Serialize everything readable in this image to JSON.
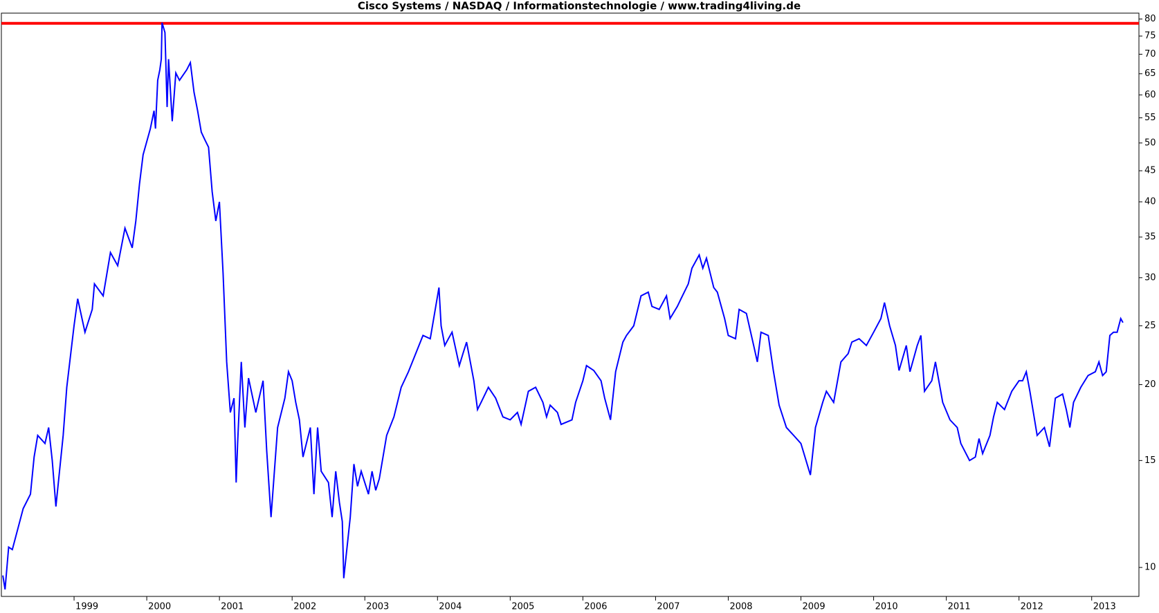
{
  "chart_data": {
    "type": "line",
    "title": "Cisco Systems / NASDAQ / Informationstechnologie / www.trading4living.de",
    "log_scale": true,
    "grid": false,
    "x": [
      1998.02,
      1998.05,
      1998.1,
      1998.15,
      1998.3,
      1998.4,
      1998.45,
      1998.5,
      1998.6,
      1998.65,
      1998.7,
      1998.75,
      1998.85,
      1998.9,
      1999.0,
      1999.05,
      1999.15,
      1999.25,
      1999.28,
      1999.4,
      1999.5,
      1999.6,
      1999.7,
      1999.8,
      1999.85,
      1999.9,
      1999.95,
      2000.05,
      2000.1,
      2000.12,
      2000.15,
      2000.18,
      2000.2,
      2000.21,
      2000.25,
      2000.28,
      2000.3,
      2000.35,
      2000.4,
      2000.45,
      2000.55,
      2000.6,
      2000.65,
      2000.7,
      2000.75,
      2000.8,
      2000.85,
      2000.9,
      2000.95,
      2001.0,
      2001.05,
      2001.1,
      2001.15,
      2001.2,
      2001.23,
      2001.25,
      2001.3,
      2001.35,
      2001.4,
      2001.5,
      2001.6,
      2001.65,
      2001.71,
      2001.8,
      2001.9,
      2001.95,
      2002.0,
      2002.05,
      2002.1,
      2002.15,
      2002.25,
      2002.3,
      2002.35,
      2002.4,
      2002.5,
      2002.55,
      2002.6,
      2002.65,
      2002.69,
      2002.71,
      2002.8,
      2002.85,
      2002.9,
      2002.95,
      2003.05,
      2003.1,
      2003.15,
      2003.2,
      2003.3,
      2003.4,
      2003.5,
      2003.6,
      2003.7,
      2003.8,
      2003.9,
      2004.02,
      2004.05,
      2004.1,
      2004.15,
      2004.2,
      2004.3,
      2004.35,
      2004.4,
      2004.5,
      2004.55,
      2004.6,
      2004.7,
      2004.8,
      2004.9,
      2005.0,
      2005.1,
      2005.15,
      2005.25,
      2005.35,
      2005.45,
      2005.5,
      2005.55,
      2005.65,
      2005.7,
      2005.85,
      2005.9,
      2006.0,
      2006.05,
      2006.15,
      2006.25,
      2006.3,
      2006.38,
      2006.45,
      2006.55,
      2006.6,
      2006.7,
      2006.8,
      2006.9,
      2006.95,
      2007.05,
      2007.15,
      2007.2,
      2007.3,
      2007.35,
      2007.45,
      2007.5,
      2007.6,
      2007.65,
      2007.7,
      2007.8,
      2007.85,
      2007.95,
      2008.0,
      2008.1,
      2008.15,
      2008.25,
      2008.35,
      2008.4,
      2008.45,
      2008.55,
      2008.62,
      2008.7,
      2008.8,
      2008.9,
      2009.0,
      2009.13,
      2009.2,
      2009.3,
      2009.35,
      2009.45,
      2009.55,
      2009.65,
      2009.7,
      2009.8,
      2009.9,
      2010.0,
      2010.1,
      2010.15,
      2010.22,
      2010.3,
      2010.35,
      2010.45,
      2010.5,
      2010.6,
      2010.65,
      2010.7,
      2010.8,
      2010.85,
      2010.95,
      2011.05,
      2011.15,
      2011.2,
      2011.32,
      2011.4,
      2011.45,
      2011.5,
      2011.6,
      2011.65,
      2011.7,
      2011.8,
      2011.9,
      2012.0,
      2012.05,
      2012.1,
      2012.15,
      2012.25,
      2012.35,
      2012.42,
      2012.5,
      2012.6,
      2012.65,
      2012.7,
      2012.75,
      2012.85,
      2012.95,
      2013.05,
      2013.1,
      2013.15,
      2013.2,
      2013.25,
      2013.3,
      2013.35,
      2013.4,
      2013.43
    ],
    "series": [
      {
        "color": "#0000ff",
        "values": [
          9.7,
          9.2,
          10.8,
          10.7,
          12.5,
          13.2,
          15.2,
          16.5,
          16,
          17,
          15,
          12.6,
          16.5,
          19.8,
          25,
          27.7,
          24.4,
          26.6,
          29.3,
          28,
          33,
          31.4,
          36.2,
          33.6,
          37.2,
          42.8,
          47.8,
          52.8,
          56.5,
          52.8,
          63.4,
          66,
          68.7,
          78.9,
          76,
          57.3,
          68.7,
          54.3,
          65.2,
          63.4,
          66,
          67.8,
          60.6,
          56.5,
          52.1,
          50.6,
          49.2,
          41.6,
          37.2,
          40,
          30.5,
          21.8,
          18,
          19,
          13.8,
          16,
          21.8,
          17,
          20.5,
          18,
          20.3,
          15.6,
          12.1,
          17,
          19,
          21,
          20.3,
          18.7,
          17.5,
          15.2,
          17,
          13.2,
          17,
          14.4,
          13.8,
          12.1,
          14.4,
          12.8,
          11.9,
          9.6,
          12.1,
          14.8,
          13.6,
          14.4,
          13.2,
          14.4,
          13.4,
          14,
          16.5,
          17.7,
          19.8,
          21,
          22.5,
          24.1,
          23.8,
          28.9,
          25,
          23.2,
          23.8,
          24.4,
          21.5,
          22.5,
          23.5,
          20.3,
          18.2,
          18.7,
          19.8,
          19,
          17.7,
          17.5,
          18,
          17.2,
          19.5,
          19.8,
          18.7,
          17.7,
          18.5,
          18,
          17.2,
          17.5,
          18.7,
          20.3,
          21.5,
          21.1,
          20.3,
          19,
          17.5,
          21,
          23.5,
          24.1,
          25,
          28,
          28.4,
          26.9,
          26.6,
          28,
          25.7,
          26.9,
          27.7,
          29.3,
          31.1,
          32.7,
          31.1,
          32.3,
          28.9,
          28.4,
          25.7,
          24.1,
          23.8,
          26.6,
          26.2,
          23.2,
          21.8,
          24.4,
          24.1,
          21.1,
          18.5,
          17,
          16.5,
          16,
          14.2,
          17,
          18.7,
          19.5,
          18.7,
          21.8,
          22.5,
          23.5,
          23.8,
          23.2,
          24.4,
          25.7,
          27.3,
          25,
          23.2,
          21.1,
          23.2,
          21,
          23.2,
          24.1,
          19.5,
          20.3,
          21.8,
          18.7,
          17.5,
          17,
          16,
          15,
          15.2,
          16.3,
          15.4,
          16.5,
          17.7,
          18.7,
          18.2,
          19.5,
          20.3,
          20.3,
          21,
          19.5,
          16.5,
          17,
          15.8,
          19,
          19.3,
          18.2,
          17,
          18.7,
          19.8,
          20.7,
          21,
          21.8,
          20.7,
          21,
          24.1,
          24.4,
          24.4,
          25.7,
          25.3
        ]
      }
    ],
    "reference_line": {
      "value": 78.7,
      "color": "#ff0000"
    },
    "xlim": [
      1998.0,
      2013.65
    ],
    "xticks": [
      1999,
      2000,
      2001,
      2002,
      2003,
      2004,
      2005,
      2006,
      2007,
      2008,
      2009,
      2010,
      2011,
      2012,
      2013
    ],
    "ylim": [
      8.96,
      81.8
    ],
    "yticks": [
      10,
      15,
      20,
      25,
      30,
      35,
      40,
      45,
      50,
      55,
      60,
      65,
      70,
      75,
      80
    ]
  }
}
